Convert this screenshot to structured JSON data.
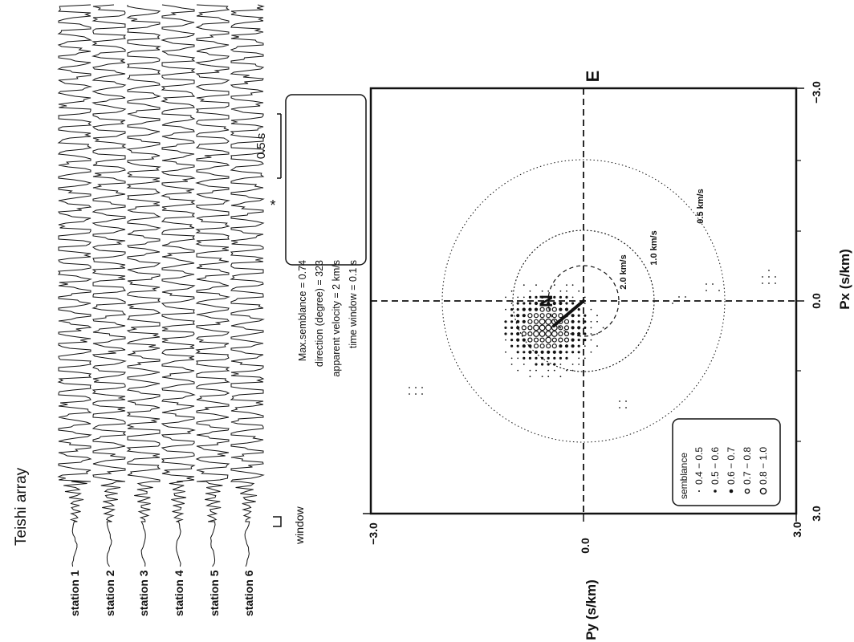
{
  "figure": {
    "array_title": "Teishi array",
    "scale_label": "0.5 s",
    "window_label": "window",
    "stations": [
      "station 1",
      "station 2",
      "station 3",
      "station 4",
      "station 5",
      "station 6"
    ],
    "info_box": {
      "semblance": "Max.semblance = 0.74",
      "direction": "direction (degree) =  323",
      "velocity": "apparent velocity = 2 km/s",
      "time_window": "time window = 0.1 s"
    },
    "directions": {
      "north": "N",
      "east": "E"
    },
    "ring_labels": [
      "2.0 km/s",
      "1.0 km/s",
      "0.5 km/s"
    ],
    "legend": {
      "title": "semblance",
      "entries": [
        "0.4 − 0.5",
        "0.5 − 0.6",
        "0.6 − 0.7",
        "0.7 − 0.8",
        "0.8 − 1.0"
      ]
    }
  },
  "chart_data": [
    {
      "type": "line",
      "title": "Teishi array",
      "series": [
        {
          "name": "station 1"
        },
        {
          "name": "station 2"
        },
        {
          "name": "station 3"
        },
        {
          "name": "station 4"
        },
        {
          "name": "station 5"
        },
        {
          "name": "station 6"
        }
      ],
      "scale_bar": "0.5 s"
    },
    {
      "type": "scatter",
      "xlabel": "Px (s/km)",
      "ylabel": "Py (s/km)",
      "xlim": [
        -3.0,
        3.0
      ],
      "ylim": [
        -3.0,
        3.0
      ],
      "x_ticks": [
        "3.0",
        "0.0",
        "−3.0"
      ],
      "y_ticks": [
        "−3.0",
        "0.0",
        "3.0"
      ],
      "max_semblance": 0.74,
      "direction_deg": 323,
      "apparent_velocity_kms": 2,
      "time_window_s": 0.1,
      "velocity_circles_kms": [
        2.0,
        1.0,
        0.5
      ],
      "semblance_classes": [
        {
          "range": "0.4 − 0.5"
        },
        {
          "range": "0.5 − 0.6"
        },
        {
          "range": "0.6 − 0.7"
        },
        {
          "range": "0.7 − 0.8"
        },
        {
          "range": "0.8 − 1.0"
        }
      ]
    }
  ]
}
